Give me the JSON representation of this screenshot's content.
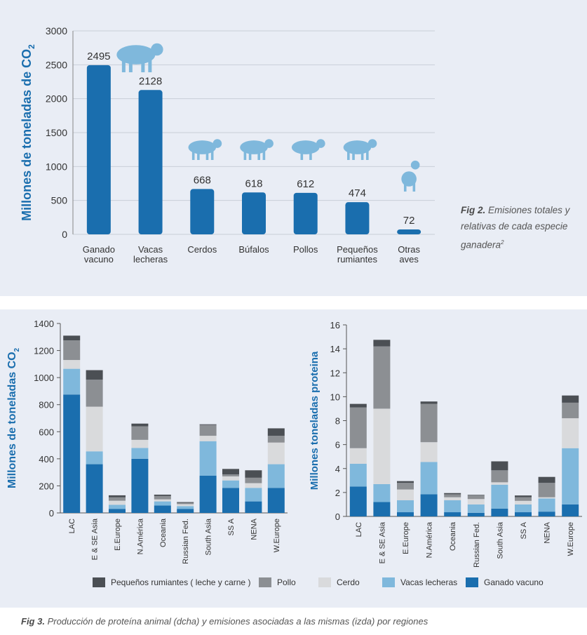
{
  "chart_data": [
    {
      "type": "bar",
      "ylabel": "Millones de toneladas de CO2",
      "ylim": [
        0,
        3000
      ],
      "yticks": [
        0,
        500,
        1000,
        1500,
        2000,
        2500,
        3000
      ],
      "categories": [
        [
          "Ganado",
          "vacuno"
        ],
        [
          "Vacas",
          "lecheras"
        ],
        [
          "Cerdos"
        ],
        [
          "Búfalos"
        ],
        [
          "Pollos"
        ],
        [
          "Pequeños",
          "rumiantes"
        ],
        [
          "Otras",
          "aves"
        ]
      ],
      "values": [
        2495,
        2128,
        668,
        618,
        612,
        474,
        72
      ],
      "value_labels": [
        "2495",
        "2128",
        "668",
        "618",
        "612",
        "474",
        "72"
      ],
      "icons": [
        "cow-icon",
        "",
        "pig-icon",
        "buffalo-icon",
        "chicken-icon",
        "goat-icon",
        "goose-icon"
      ],
      "bar_color": "#1a6eae",
      "icon_color": "#7fb8dc",
      "grid": true
    },
    {
      "type": "stacked-bar",
      "ylabel": "Millones de toneladas CO2",
      "ylim": [
        0,
        1400
      ],
      "yticks": [
        0,
        200,
        400,
        600,
        800,
        1000,
        1200,
        1400
      ],
      "categories": [
        "LAC",
        "E & SE Asia",
        "E.Europe",
        "N.América",
        "Oceania",
        "Russian Fed.",
        "South Asia",
        "SS A",
        "NENA",
        "W.Europe"
      ],
      "series": [
        {
          "name": "Ganado vacuno",
          "values": [
            875,
            360,
            30,
            400,
            55,
            30,
            275,
            185,
            85,
            185
          ]
        },
        {
          "name": "Vacas lecheras",
          "values": [
            190,
            95,
            30,
            80,
            30,
            20,
            255,
            55,
            100,
            175
          ]
        },
        {
          "name": "Cerdo",
          "values": [
            65,
            330,
            30,
            60,
            15,
            15,
            40,
            30,
            35,
            160
          ]
        },
        {
          "name": "Pollo",
          "values": [
            145,
            200,
            25,
            100,
            25,
            10,
            80,
            15,
            40,
            50
          ]
        },
        {
          "name": "Pequeños rumiantes ( leche y carne )",
          "values": [
            35,
            70,
            15,
            20,
            10,
            5,
            5,
            40,
            55,
            55
          ]
        }
      ]
    },
    {
      "type": "stacked-bar",
      "ylabel": "Millones toneladas proteina",
      "ylim": [
        0,
        16
      ],
      "yticks": [
        0,
        2,
        4,
        6,
        8,
        10,
        12,
        14,
        16
      ],
      "categories": [
        "LAC",
        "E & SE Asia",
        "E.Europe",
        "N.América",
        "Oceania",
        "Russian Fed.",
        "South Asia",
        "SS A",
        "NENA",
        "W.Europe"
      ],
      "series": [
        {
          "name": "Ganado vacuno",
          "values": [
            2.5,
            1.2,
            0.35,
            1.85,
            0.35,
            0.3,
            0.65,
            0.35,
            0.4,
            1.0
          ]
        },
        {
          "name": "Vacas lecheras",
          "values": [
            1.9,
            1.5,
            1.0,
            2.7,
            1.0,
            0.7,
            2.0,
            0.65,
            1.1,
            4.7
          ]
        },
        {
          "name": "Cerdo",
          "values": [
            1.3,
            6.3,
            0.9,
            1.65,
            0.25,
            0.45,
            0.2,
            0.3,
            0.1,
            2.5
          ]
        },
        {
          "name": "Pollo",
          "values": [
            3.4,
            5.2,
            0.55,
            3.2,
            0.25,
            0.3,
            1.0,
            0.3,
            1.2,
            1.3
          ]
        },
        {
          "name": "Pequeños rumiantes ( leche y carne )",
          "values": [
            0.3,
            0.55,
            0.15,
            0.2,
            0.1,
            0.05,
            0.75,
            0.15,
            0.5,
            0.6
          ]
        }
      ]
    }
  ],
  "legend": {
    "items": [
      {
        "label": "Pequeños rumiantes ( leche y carne )",
        "color": "#4b4f54"
      },
      {
        "label": "Pollo",
        "color": "#8c8f93"
      },
      {
        "label": "Cerdo",
        "color": "#d9dadc"
      },
      {
        "label": "Vacas lecheras",
        "color": "#7fb8dc"
      },
      {
        "label": "Ganado vacuno",
        "color": "#1a6eae"
      }
    ]
  },
  "fig2": {
    "label": "Fig 2.",
    "text": "Emisiones totales y relativas de cada especie ganadera",
    "sup": "2"
  },
  "fig3": {
    "label": "Fig 3.",
    "text": "Producción de proteína animal (dcha) y emisiones asociadas a las mismas (izda) por regiones"
  }
}
